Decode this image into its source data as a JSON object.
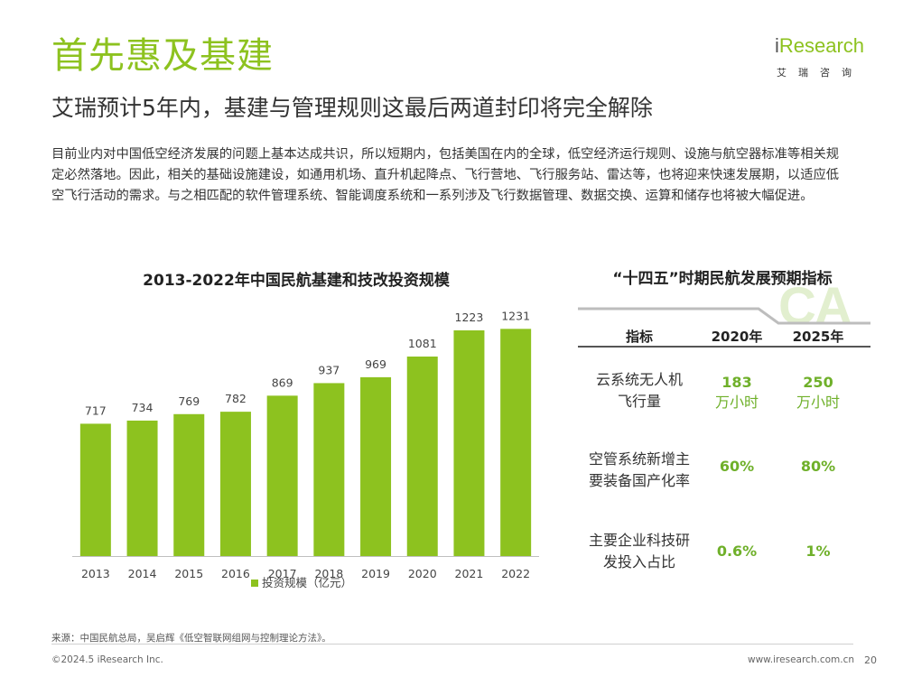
{
  "header": {
    "title": "首先惠及基建",
    "subtitle": "艾瑞预计5年内，基建与管理规则这最后两道封印将完全解除",
    "logo_brand_prefix": "i",
    "logo_brand_rest": "Research",
    "logo_cn": "艾瑞咨询"
  },
  "body_text": "目前业内对中国低空经济发展的问题上基本达成共识，所以短期内，包括美国在内的全球，低空经济运行规则、设施与航空器标准等相关规定必然落地。因此，相关的基础设施建设，如通用机场、直升机起降点、飞行营地、飞行服务站、雷达等，也将迎来快速发展期，以适应低空飞行活动的需求。与之相匹配的软件管理系统、智能调度系统和一系列涉及飞行数据管理、数据交换、运算和储存也将被大幅促进。",
  "chart_data": {
    "type": "bar",
    "title": "2013-2022年中国民航基建和技改投资规模",
    "categories": [
      "2013",
      "2014",
      "2015",
      "2016",
      "2017",
      "2018",
      "2019",
      "2020",
      "2021",
      "2022"
    ],
    "series": [
      {
        "name": "投资规模（亿元）",
        "values": [
          717,
          734,
          769,
          782,
          869,
          937,
          969,
          1081,
          1223,
          1231
        ]
      }
    ],
    "ylim": [
      0,
      1350
    ],
    "grid": false,
    "legend": "bottom-center",
    "color": "#8dc21f"
  },
  "table": {
    "title": "“十四五”时期民航发展预期指标",
    "watermark": "CA",
    "headers": [
      "指标",
      "2020年",
      "2025年"
    ],
    "rows": [
      {
        "label_lines": [
          "云系统无人机",
          "飞行量"
        ],
        "v2020": "183",
        "v2020_unit": "万小时",
        "v2025": "250",
        "v2025_unit": "万小时"
      },
      {
        "label_lines": [
          "空管系统新增主",
          "要装备国产化率"
        ],
        "v2020": "60%",
        "v2020_unit": "",
        "v2025": "80%",
        "v2025_unit": ""
      },
      {
        "label_lines": [
          "主要企业科技研",
          "发投入占比"
        ],
        "v2020": "0.6%",
        "v2020_unit": "",
        "v2025": "1%",
        "v2025_unit": ""
      }
    ],
    "accent_color": "#6fb02a"
  },
  "footer": {
    "source": "来源：中国民航总局，吴启辉《低空智联网组网与控制理论方法》。",
    "copyright": "©2024.5 iResearch Inc.",
    "website": "www.iresearch.com.cn",
    "page_number": "20"
  }
}
